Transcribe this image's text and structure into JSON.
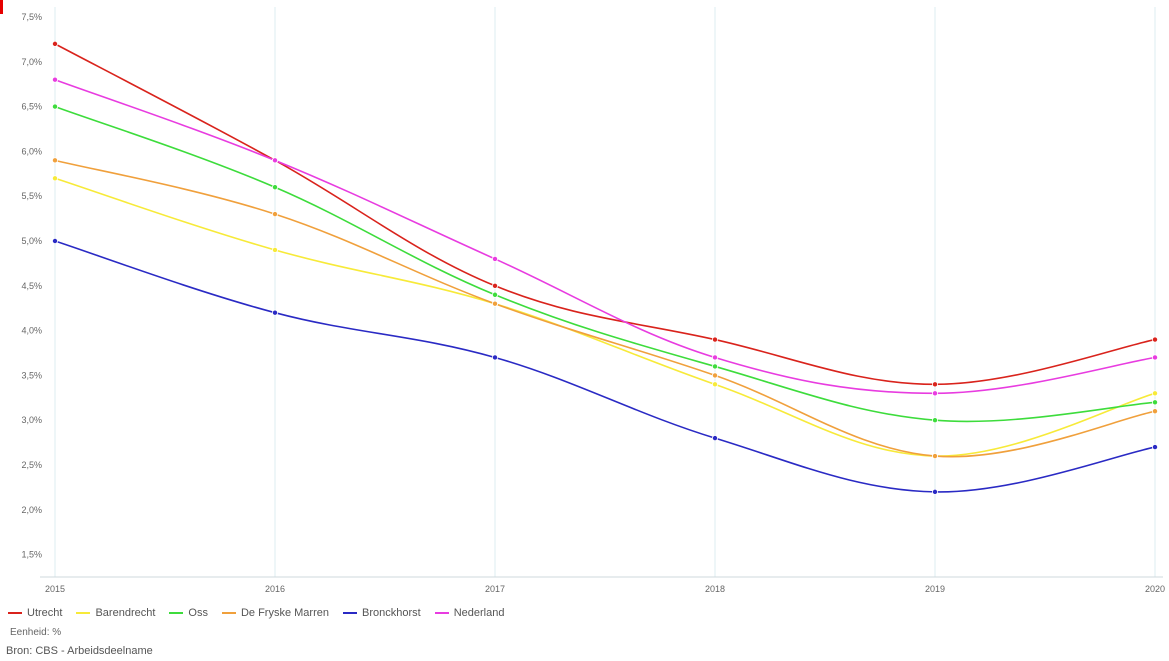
{
  "chart_data": {
    "type": "line",
    "title": "",
    "xlabel": "",
    "ylabel": "",
    "x": [
      "2015",
      "2016",
      "2017",
      "2018",
      "2019",
      "2020"
    ],
    "ylim": [
      1.25,
      7.5
    ],
    "yticks": [
      1.5,
      2.0,
      2.5,
      3.0,
      3.5,
      4.0,
      4.5,
      5.0,
      5.5,
      6.0,
      6.5,
      7.0,
      7.5
    ],
    "ytick_labels": [
      "1,5%",
      "2,0%",
      "2,5%",
      "3,0%",
      "3,5%",
      "4,0%",
      "4,5%",
      "5,0%",
      "5,5%",
      "6,0%",
      "6,5%",
      "7,0%",
      "7,5%"
    ],
    "grid": "vertical",
    "legend_position": "bottom-left",
    "series": [
      {
        "name": "Utrecht",
        "color": "#d9231c",
        "values": [
          7.2,
          5.9,
          4.5,
          3.9,
          3.4,
          3.9
        ]
      },
      {
        "name": "Barendrecht",
        "color": "#f7ea39",
        "values": [
          5.7,
          4.9,
          4.3,
          3.4,
          2.6,
          3.3
        ]
      },
      {
        "name": "Oss",
        "color": "#3ddc3c",
        "values": [
          6.5,
          5.6,
          4.4,
          3.6,
          3.0,
          3.2
        ]
      },
      {
        "name": "De Fryske Marren",
        "color": "#f0a03c",
        "values": [
          5.9,
          5.3,
          4.3,
          3.5,
          2.6,
          3.1
        ]
      },
      {
        "name": "Bronckhorst",
        "color": "#2a2ac4",
        "values": [
          5.0,
          4.2,
          3.7,
          2.8,
          2.2,
          2.7
        ]
      },
      {
        "name": "Nederland",
        "color": "#e83ce0",
        "values": [
          6.8,
          5.9,
          4.8,
          3.7,
          3.3,
          3.7
        ]
      }
    ]
  },
  "footer": {
    "unit_text": "Eenheid: %",
    "source_text": "Bron: CBS - Arbeidsdeelname"
  }
}
